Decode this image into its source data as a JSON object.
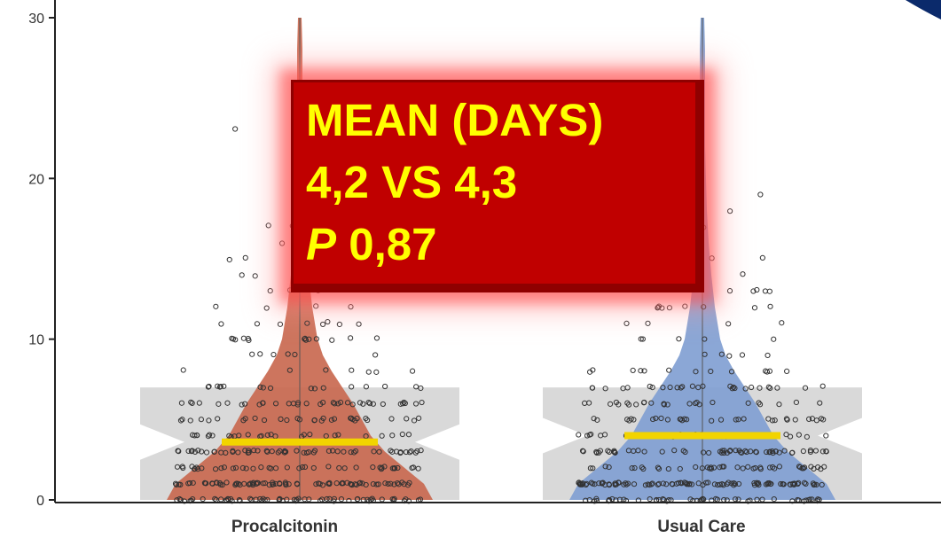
{
  "chart_data": {
    "type": "violin",
    "categories": [
      "Procalcitonin",
      "Usual Care"
    ],
    "y_ticks": [
      "0",
      "10",
      "20",
      "30"
    ],
    "ylim": [
      0,
      30
    ],
    "series": [
      {
        "values_mean_label": "4,2",
        "median_line": 3.6,
        "box_q1": 0,
        "box_q3": 7,
        "color": "#c8664c"
      },
      {
        "values_mean_label": "4,3",
        "median_line": 4.0,
        "box_q1": 0,
        "box_q3": 7,
        "color": "#7e9dd2"
      }
    ],
    "grid": false,
    "legend": "none"
  },
  "stats_box": {
    "line1": "MEAN (DAYS)",
    "line2": "4,2 VS 4,3",
    "p_letter": "P",
    "p_value": "0,87",
    "bg_color": "#c00000",
    "text_color": "#ffff00"
  },
  "colors": {
    "median_line": "#f2d400",
    "box_fill": "#d9d9d9",
    "axis": "#222222",
    "corner_accent": "#0b2a6b"
  }
}
